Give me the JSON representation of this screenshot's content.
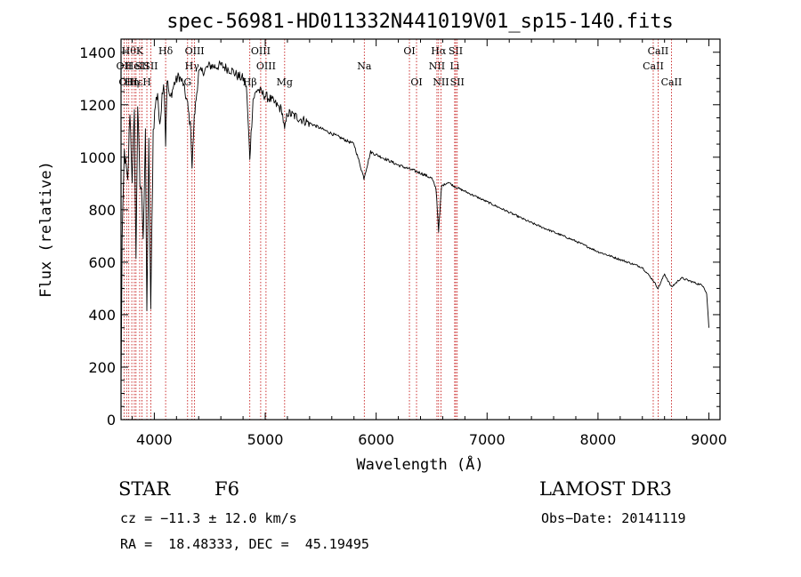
{
  "chart_data": {
    "type": "line",
    "title": "spec-56981-HD011332N441019V01_sp15-140.fits",
    "xlabel": "Wavelength (Å)",
    "ylabel": "Flux (relative)",
    "xlim": [
      3700,
      9100
    ],
    "ylim": [
      0,
      1450
    ],
    "x_ticks": [
      4000,
      5000,
      6000,
      7000,
      8000,
      9000
    ],
    "y_ticks": [
      0,
      200,
      400,
      600,
      800,
      1000,
      1200,
      1400
    ],
    "x_ticks_labels": [
      "4000",
      "5000",
      "6000",
      "7000",
      "8000",
      "9000"
    ],
    "y_ticks_labels": [
      "0",
      "200",
      "400",
      "600",
      "800",
      "1000",
      "1200",
      "1400"
    ],
    "grid": false,
    "series": [
      {
        "name": "spectrum",
        "x": [
          3700,
          3710,
          3730,
          3760,
          3780,
          3800,
          3820,
          3835,
          3850,
          3870,
          3889,
          3900,
          3920,
          3933,
          3950,
          3968,
          3990,
          4010,
          4030,
          4050,
          4070,
          4090,
          4102,
          4115,
          4140,
          4180,
          4220,
          4260,
          4300,
          4330,
          4340,
          4360,
          4400,
          4450,
          4500,
          4550,
          4600,
          4650,
          4700,
          4750,
          4800,
          4830,
          4861,
          4890,
          4930,
          4980,
          5050,
          5100,
          5150,
          5175,
          5200,
          5300,
          5400,
          5500,
          5600,
          5700,
          5800,
          5890,
          5950,
          6000,
          6100,
          6200,
          6300,
          6400,
          6500,
          6540,
          6563,
          6590,
          6650,
          6700,
          6800,
          7000,
          7200,
          7400,
          7600,
          7800,
          8000,
          8200,
          8400,
          8498,
          8542,
          8600,
          8662,
          8750,
          8850,
          8950,
          8980,
          9000
        ],
        "y": [
          120,
          680,
          1020,
          900,
          1180,
          920,
          1160,
          600,
          1200,
          900,
          850,
          700,
          1080,
          400,
          1050,
          420,
          1100,
          1200,
          1250,
          1100,
          1260,
          1270,
          1050,
          1300,
          1220,
          1280,
          1310,
          1280,
          1200,
          1100,
          960,
          1150,
          1320,
          1330,
          1350,
          1345,
          1350,
          1340,
          1330,
          1310,
          1300,
          1270,
          1000,
          1220,
          1260,
          1240,
          1220,
          1200,
          1180,
          1100,
          1170,
          1150,
          1130,
          1110,
          1090,
          1070,
          1050,
          920,
          1020,
          1010,
          990,
          970,
          955,
          940,
          920,
          880,
          720,
          890,
          905,
          890,
          870,
          830,
          790,
          750,
          715,
          680,
          640,
          610,
          580,
          530,
          500,
          555,
          505,
          540,
          525,
          510,
          480,
          350
        ]
      }
    ],
    "lines": [
      {
        "x": 3727,
        "top": "OII",
        "row": 1
      },
      {
        "x": 3750,
        "top": "OII",
        "row": 2
      },
      {
        "x": 3770,
        "top": "Hθ",
        "row": 0
      },
      {
        "x": 3797,
        "top": "Hη",
        "row": 2
      },
      {
        "x": 3820,
        "top": "HeI",
        "row": 1
      },
      {
        "x": 3835,
        "top": "Hε",
        "row": 2
      },
      {
        "x": 3868,
        "top": "K",
        "row": 0
      },
      {
        "x": 3889,
        "top": "SII",
        "row": 1
      },
      {
        "x": 3933,
        "top": "H",
        "row": 2
      },
      {
        "x": 3968,
        "top": "SII",
        "row": 1
      },
      {
        "x": 4102,
        "top": "Hδ",
        "row": 0
      },
      {
        "x": 4300,
        "top": "G",
        "row": 2
      },
      {
        "x": 4340,
        "top": "Hγ",
        "row": 1
      },
      {
        "x": 4363,
        "top": "OIII",
        "row": 0
      },
      {
        "x": 4861,
        "top": "Hβ",
        "row": 2
      },
      {
        "x": 4959,
        "top": "OIII",
        "row": 0
      },
      {
        "x": 5007,
        "top": "OIII",
        "row": 1
      },
      {
        "x": 5175,
        "top": "Mg",
        "row": 2
      },
      {
        "x": 5893,
        "top": "Na",
        "row": 1
      },
      {
        "x": 6300,
        "top": "OI",
        "row": 0
      },
      {
        "x": 6364,
        "top": "OI",
        "row": 2
      },
      {
        "x": 6548,
        "top": "NII",
        "row": 1
      },
      {
        "x": 6563,
        "top": "Hα",
        "row": 0
      },
      {
        "x": 6584,
        "top": "NII",
        "row": 2
      },
      {
        "x": 6708,
        "top": "Li",
        "row": 1
      },
      {
        "x": 6717,
        "top": "SII",
        "row": 0
      },
      {
        "x": 6731,
        "top": "SII",
        "row": 2
      },
      {
        "x": 8498,
        "top": "CaII",
        "row": 1
      },
      {
        "x": 8542,
        "top": "CaII",
        "row": 0
      },
      {
        "x": 8662,
        "top": "CaII",
        "row": 2
      }
    ]
  },
  "info": {
    "object_type": "STAR",
    "spectral_class": "F6",
    "survey": "LAMOST DR3",
    "velocity": "cz = −11.3 ± 12.0 km/s",
    "obs_date": "Obs−Date: 20141119",
    "coords": "RA =  18.48333, DEC =  45.19495"
  }
}
